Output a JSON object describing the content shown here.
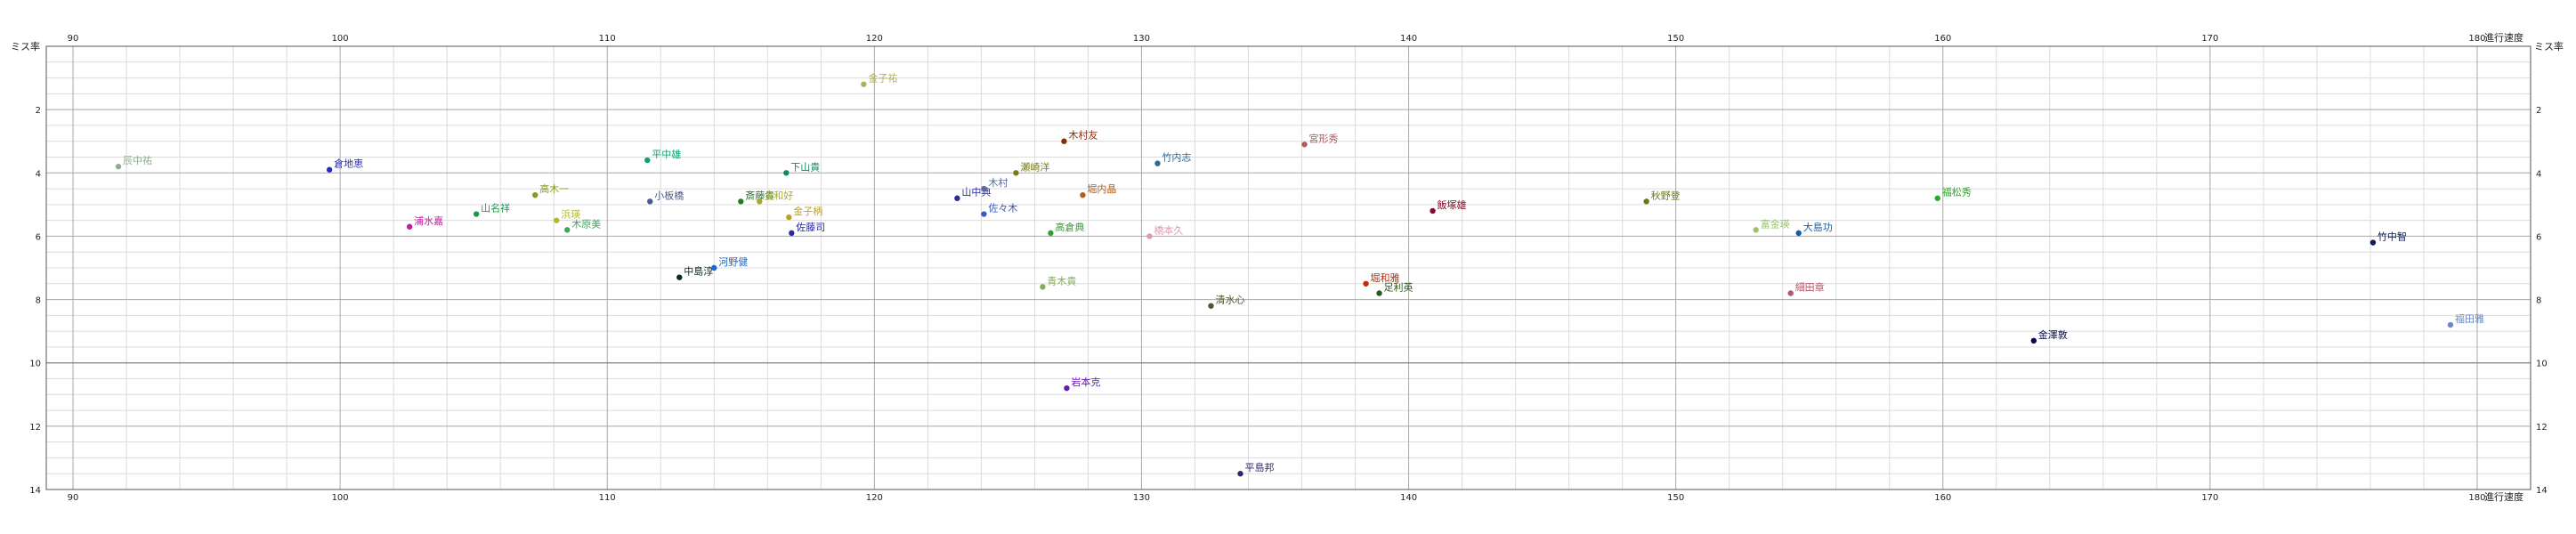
{
  "chart_data": {
    "type": "scatter",
    "title": "",
    "xlabel": "進行速度",
    "ylabel": "ミス率",
    "xlim": [
      89,
      182
    ],
    "ylim": [
      0,
      14
    ],
    "y_inverted": true,
    "grid": true,
    "x_ticks": [
      90,
      100,
      110,
      120,
      130,
      140,
      150,
      160,
      170,
      180
    ],
    "y_ticks": [
      2,
      4,
      6,
      8,
      10,
      12,
      14
    ],
    "points": [
      {
        "label": "辰中祐",
        "x": 91.7,
        "y": 3.8,
        "color": "#8fae8f"
      },
      {
        "label": "倉地恵",
        "x": 99.6,
        "y": 3.9,
        "color": "#2b2bb8"
      },
      {
        "label": "浦水嘉",
        "x": 102.6,
        "y": 5.7,
        "color": "#c0209a"
      },
      {
        "label": "山名祥",
        "x": 105.1,
        "y": 5.3,
        "color": "#1a9a4a"
      },
      {
        "label": "高木一",
        "x": 107.3,
        "y": 4.7,
        "color": "#8a9a20"
      },
      {
        "label": "浜瑛",
        "x": 108.1,
        "y": 5.5,
        "color": "#b8b820"
      },
      {
        "label": "木原美",
        "x": 108.5,
        "y": 5.8,
        "color": "#3aaa5a"
      },
      {
        "label": "平中雄",
        "x": 111.5,
        "y": 3.6,
        "color": "#10a070"
      },
      {
        "label": "小板橋",
        "x": 111.6,
        "y": 4.9,
        "color": "#4a5a8a"
      },
      {
        "label": "中島淳",
        "x": 112.7,
        "y": 7.3,
        "color": "#0a2a2a"
      },
      {
        "label": "河野健",
        "x": 114.0,
        "y": 7.0,
        "color": "#1a6acc"
      },
      {
        "label": "斎藤貴",
        "x": 115.0,
        "y": 4.9,
        "color": "#2a7a2a"
      },
      {
        "label": "金和好",
        "x": 115.7,
        "y": 4.9,
        "color": "#aaaa30"
      },
      {
        "label": "下山貴",
        "x": 116.7,
        "y": 4.0,
        "color": "#108a5a"
      },
      {
        "label": "金子柄",
        "x": 116.8,
        "y": 5.4,
        "color": "#c0a020"
      },
      {
        "label": "佐藤司",
        "x": 116.9,
        "y": 5.9,
        "color": "#2a2aa0"
      },
      {
        "label": "金子祐",
        "x": 119.6,
        "y": 1.2,
        "color": "#b0b060"
      },
      {
        "label": "山中典",
        "x": 123.1,
        "y": 4.8,
        "color": "#2a2a9a"
      },
      {
        "label": "木村",
        "x": 124.1,
        "y": 4.5,
        "color": "#5a6a9a"
      },
      {
        "label": "佐々木",
        "x": 124.1,
        "y": 5.3,
        "color": "#3a5ac0"
      },
      {
        "label": "瀬崎洋",
        "x": 125.3,
        "y": 4.0,
        "color": "#7a7a1a"
      },
      {
        "label": "高倉典",
        "x": 126.6,
        "y": 5.9,
        "color": "#3a9a3a"
      },
      {
        "label": "青木貴",
        "x": 126.3,
        "y": 7.6,
        "color": "#8aaa5a"
      },
      {
        "label": "木村友",
        "x": 127.1,
        "y": 3.0,
        "color": "#8a2a0a"
      },
      {
        "label": "堀内晶",
        "x": 127.8,
        "y": 4.7,
        "color": "#b0601a"
      },
      {
        "label": "岩本克",
        "x": 127.2,
        "y": 10.8,
        "color": "#6a1ab0"
      },
      {
        "label": "橋本久",
        "x": 130.3,
        "y": 6.0,
        "color": "#e09ab0"
      },
      {
        "label": "竹内志",
        "x": 130.6,
        "y": 3.7,
        "color": "#2a6a9a"
      },
      {
        "label": "清水心",
        "x": 132.6,
        "y": 8.2,
        "color": "#4a5a2a"
      },
      {
        "label": "平島邦",
        "x": 133.7,
        "y": 13.5,
        "color": "#2a2a6a"
      },
      {
        "label": "宮形秀",
        "x": 136.1,
        "y": 3.1,
        "color": "#b05a5a"
      },
      {
        "label": "堀和雅",
        "x": 138.4,
        "y": 7.5,
        "color": "#c02a0a"
      },
      {
        "label": "足利英",
        "x": 138.9,
        "y": 7.8,
        "color": "#2a5a1a"
      },
      {
        "label": "飯塚雄",
        "x": 140.9,
        "y": 5.2,
        "color": "#8a0a2a"
      },
      {
        "label": "秋野登",
        "x": 148.9,
        "y": 4.9,
        "color": "#6a7a1a"
      },
      {
        "label": "富金瑛",
        "x": 153.0,
        "y": 5.8,
        "color": "#9ac070"
      },
      {
        "label": "大島功",
        "x": 154.6,
        "y": 5.9,
        "color": "#1a5aa0"
      },
      {
        "label": "細田章",
        "x": 154.3,
        "y": 7.8,
        "color": "#b05a6a"
      },
      {
        "label": "福松秀",
        "x": 159.8,
        "y": 4.8,
        "color": "#2aaa2a"
      },
      {
        "label": "金澤敦",
        "x": 163.4,
        "y": 9.3,
        "color": "#0a0a4a"
      },
      {
        "label": "竹中智",
        "x": 176.1,
        "y": 6.2,
        "color": "#0a1a5a"
      },
      {
        "label": "福田雅",
        "x": 179.0,
        "y": 8.8,
        "color": "#6a8ac0"
      }
    ]
  }
}
